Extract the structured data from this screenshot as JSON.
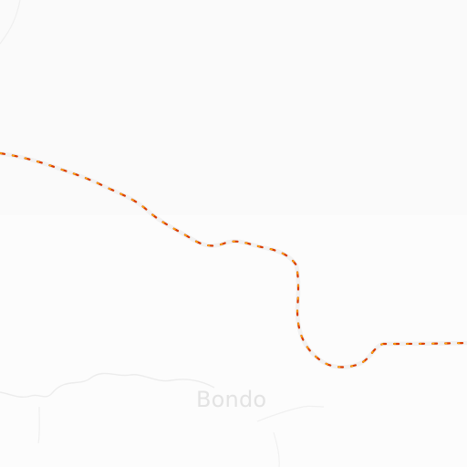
{
  "map": {
    "place_label": "Bondo"
  },
  "colors": {
    "background": "#fbfbfb",
    "land_tint": "#f6f6f6",
    "border_casing": "#f1f1f1",
    "border_dash_red": "#d93a00",
    "border_dash_orange": "#ffb000",
    "minor_line": "#ececec",
    "label_text": "#e3e3e3"
  },
  "icons": {
    "boundary_style": "dashed-border-line"
  }
}
